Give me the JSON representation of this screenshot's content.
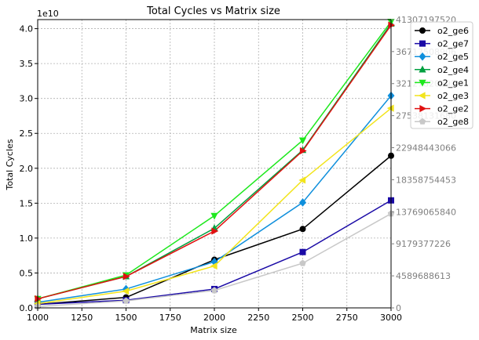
{
  "chart_data": {
    "type": "line",
    "title": "Total Cycles vs Matrix size",
    "xlabel": "Matrix size",
    "ylabel": "Total Cycles",
    "y_offset_label": "1e10",
    "xlim": [
      1000,
      3000
    ],
    "ylim": [
      0,
      4.13
    ],
    "x_ticks": [
      1000,
      1250,
      1500,
      1750,
      2000,
      2250,
      2500,
      2750,
      3000
    ],
    "y_ticks": [
      0,
      0.5,
      1.0,
      1.5,
      2.0,
      2.5,
      3.0,
      3.5,
      4.0
    ],
    "y_tick_labels": [
      "0.0",
      "0.5",
      "1.0",
      "1.5",
      "2.0",
      "2.5",
      "3.0",
      "3.5",
      "4.0"
    ],
    "grid": true,
    "legend_position": "top-right (outside)",
    "secondary_axis": {
      "side": "right",
      "color": "#808080",
      "values": [
        0,
        0.458969,
        0.917938,
        1.376907,
        1.835875,
        2.294844,
        2.753813,
        3.212782,
        3.671751,
        4.13072
      ],
      "labels": [
        "0",
        "4589688613",
        "9179377226",
        "13769065840",
        "18358754453",
        "22948443066",
        "27538131680",
        "32127820293",
        "36717508906",
        "41307197520"
      ]
    },
    "x": [
      1000,
      1500,
      2000,
      2500,
      3000
    ],
    "series": [
      {
        "name": "o2_ge6",
        "color": "#000000",
        "marker": "circle",
        "values": [
          0.05,
          0.15,
          0.69,
          1.13,
          2.18
        ]
      },
      {
        "name": "o2_ge7",
        "color": "#1a0aa6",
        "marker": "square",
        "values": [
          0.05,
          0.11,
          0.27,
          0.8,
          1.54
        ]
      },
      {
        "name": "o2_ge5",
        "color": "#0f8fdc",
        "marker": "diamond",
        "values": [
          0.08,
          0.27,
          0.66,
          1.51,
          3.04
        ]
      },
      {
        "name": "o2_ge4",
        "color": "#00a040",
        "marker": "triangle-up",
        "values": [
          0.13,
          0.45,
          1.14,
          2.26,
          4.07
        ]
      },
      {
        "name": "o2_ge1",
        "color": "#1de81d",
        "marker": "triangle-down",
        "values": [
          0.13,
          0.47,
          1.32,
          2.4,
          4.1
        ]
      },
      {
        "name": "o2_ge3",
        "color": "#f2e41c",
        "marker": "triangle-left",
        "values": [
          0.06,
          0.24,
          0.6,
          1.83,
          2.86
        ]
      },
      {
        "name": "o2_ge2",
        "color": "#e01010",
        "marker": "triangle-right",
        "values": [
          0.13,
          0.45,
          1.1,
          2.25,
          4.05
        ]
      },
      {
        "name": "o2_ge8",
        "color": "#c8c8c8",
        "marker": "pentagon",
        "values": [
          0.02,
          0.1,
          0.25,
          0.64,
          1.35
        ]
      }
    ]
  }
}
